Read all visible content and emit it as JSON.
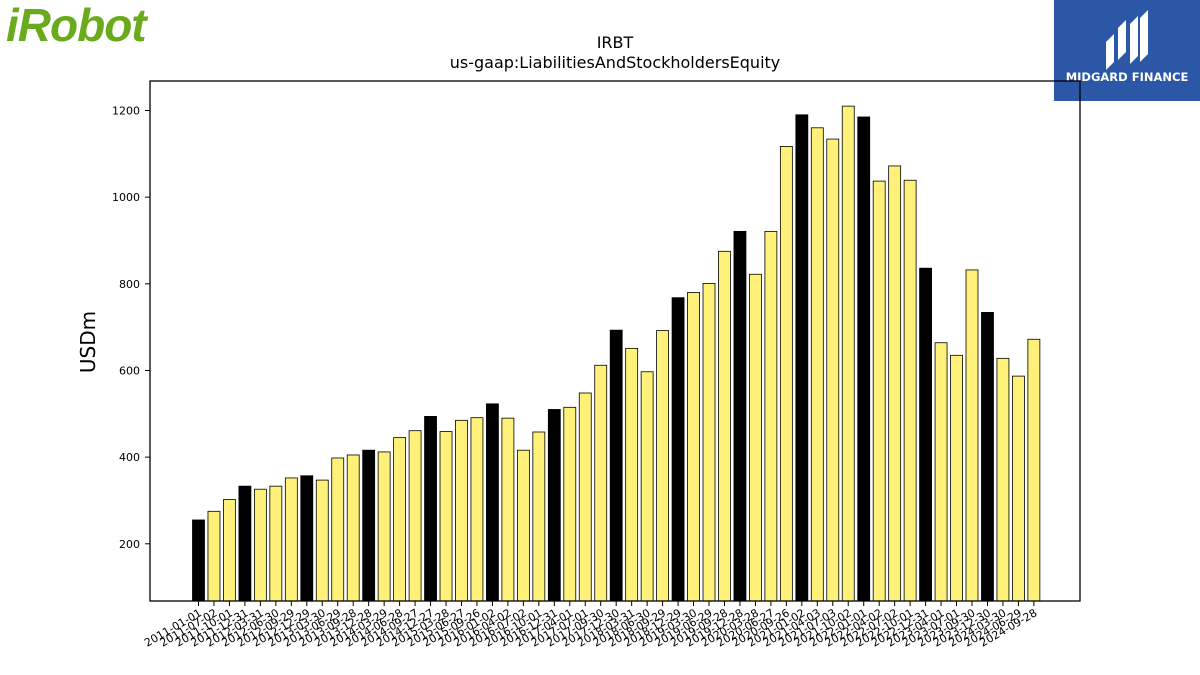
{
  "logo": {
    "text": "iRobot",
    "color": "#6aab1e"
  },
  "brand": {
    "name": "MIDGARD FINANCE",
    "color": "#2b57a6",
    "icon": "midgard-m-icon"
  },
  "chart_data": {
    "type": "bar",
    "title": "IRBT",
    "subtitle": "us-gaap:LiabilitiesAndStockholdersEquity",
    "ylabel": "USDm",
    "xlabel": "",
    "ylim": [
      68,
      1268
    ],
    "yticks": [
      200,
      400,
      600,
      800,
      1000,
      1200
    ],
    "grid": false,
    "colors": {
      "annual": "#000000",
      "quarter": "#fff07a",
      "edge": "#000000"
    },
    "categories": [
      "2011-01-01",
      "2011-07-02",
      "2011-10-01",
      "2011-12-31",
      "2012-03-31",
      "2012-06-30",
      "2012-09-29",
      "2012-12-29",
      "2013-03-30",
      "2013-06-29",
      "2013-09-28",
      "2013-12-28",
      "2014-03-29",
      "2014-06-28",
      "2014-09-27",
      "2014-12-27",
      "2015-03-28",
      "2015-06-27",
      "2015-09-26",
      "2016-01-02",
      "2016-04-02",
      "2016-07-02",
      "2016-10-01",
      "2016-12-31",
      "2017-04-01",
      "2017-07-01",
      "2017-09-30",
      "2017-12-30",
      "2018-03-31",
      "2018-06-30",
      "2018-09-29",
      "2018-12-29",
      "2019-03-30",
      "2019-06-29",
      "2019-09-28",
      "2019-12-28",
      "2020-03-28",
      "2020-06-27",
      "2020-09-26",
      "2021-01-02",
      "2021-04-03",
      "2021-07-03",
      "2021-10-02",
      "2022-01-01",
      "2022-04-02",
      "2022-07-02",
      "2022-10-01",
      "2022-12-31",
      "2023-04-01",
      "2023-07-01",
      "2023-09-30",
      "2023-12-30",
      "2024-03-30",
      "2024-06-29",
      "2024-09-28"
    ],
    "values": [
      255,
      275,
      302,
      333,
      326,
      333,
      352,
      357,
      347,
      398,
      405,
      416,
      412,
      445,
      461,
      494,
      459,
      485,
      491,
      523,
      490,
      416,
      458,
      510,
      515,
      548,
      612,
      693,
      651,
      597,
      692,
      768,
      780,
      801,
      875,
      921,
      822,
      921,
      1117,
      1190,
      1160,
      1134,
      1210,
      1185,
      1037,
      1072,
      1039,
      836,
      664,
      635,
      832,
      734,
      628,
      587,
      672
    ],
    "annual_flags": [
      1,
      0,
      0,
      1,
      0,
      0,
      0,
      1,
      0,
      0,
      0,
      1,
      0,
      0,
      0,
      1,
      0,
      0,
      0,
      1,
      0,
      0,
      0,
      1,
      0,
      0,
      0,
      1,
      0,
      0,
      0,
      1,
      0,
      0,
      0,
      1,
      0,
      0,
      0,
      1,
      0,
      0,
      0,
      1,
      0,
      0,
      0,
      1,
      0,
      0,
      0,
      1,
      0,
      0,
      0
    ]
  }
}
